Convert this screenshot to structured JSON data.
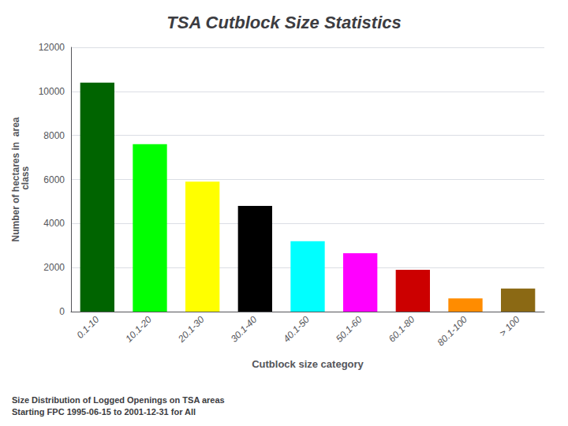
{
  "chart_data": {
    "type": "bar",
    "title": "TSA Cutblock Size Statistics",
    "subtitle": "Size Distribution of Logged Openings on TSA areas\nStarting FPC 1995-06-15 to 2001-12-31 for All",
    "xlabel": "Cutblock size category",
    "ylabel": "Number of hectares in  area\n class",
    "categories": [
      "0.1-10",
      "10.1-20",
      "20.1-30",
      "30.1-40",
      "40.1-50",
      "50.1-60",
      "60.1-80",
      "80.1-100",
      "> 100"
    ],
    "values": [
      10400,
      7600,
      5900,
      4800,
      3200,
      2650,
      1900,
      600,
      1050
    ],
    "colors": [
      "#006400",
      "#00ff00",
      "#ffff00",
      "#000000",
      "#00ffff",
      "#ff00ff",
      "#cc0000",
      "#ff8c00",
      "#8b6914"
    ],
    "ylim": [
      0,
      12000
    ],
    "yticks": [
      0,
      2000,
      4000,
      6000,
      8000,
      10000,
      12000
    ],
    "grid": true
  }
}
